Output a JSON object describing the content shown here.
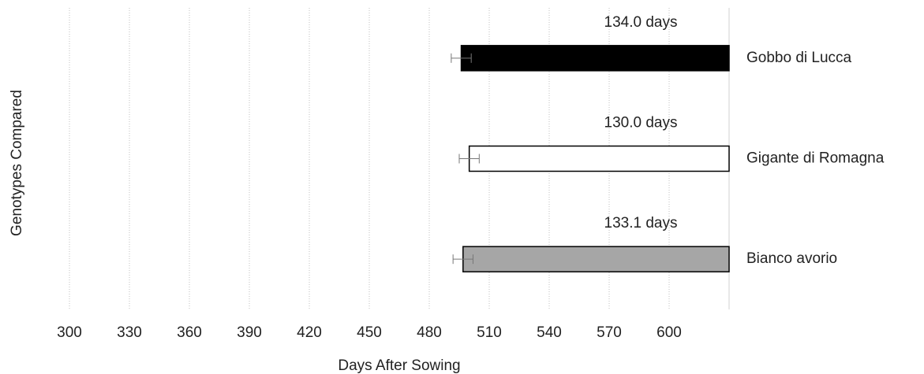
{
  "chart_data": {
    "type": "bar",
    "orientation": "horizontal",
    "x_label": "Days After Sowing",
    "y_label": "Genotypes Compared",
    "categories": [
      "Bianco avorio",
      "Gigante di Romagna",
      "Gobbo di Lucca"
    ],
    "starts": [
      496.9,
      500,
      496
    ],
    "values": [
      133.1,
      130.0,
      134.0
    ],
    "value_labels": [
      "133.1 days",
      "130.0 days",
      "134.0 days"
    ],
    "start_errors": [
      5,
      5,
      5
    ],
    "colors": [
      "#a6a6a6",
      "#ffffff",
      "#000000"
    ],
    "xlim": [
      300,
      630
    ],
    "xticks": [
      300,
      330,
      360,
      390,
      420,
      450,
      480,
      510,
      540,
      570,
      600
    ],
    "grid": true
  }
}
